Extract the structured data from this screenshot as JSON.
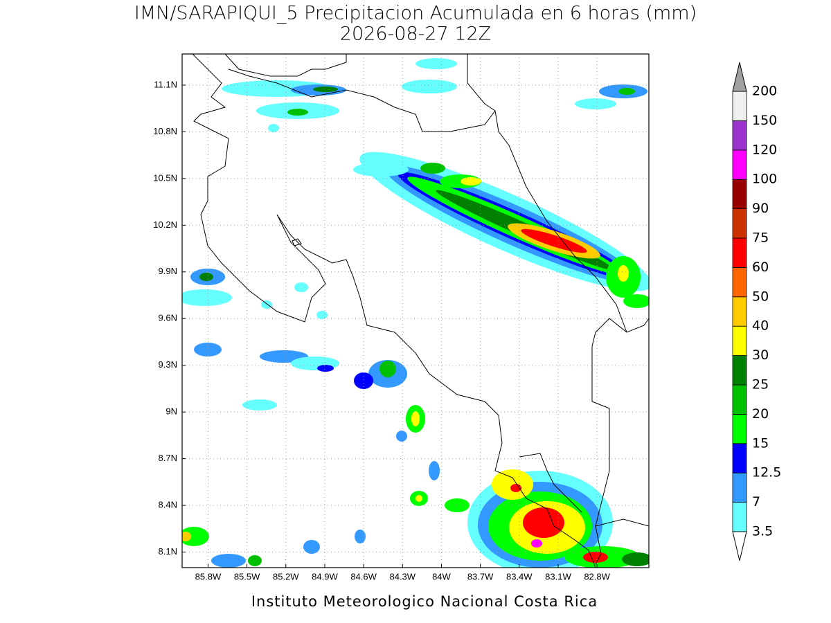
{
  "map": {
    "title": "IMN/SARAPIQUI_5 Precipitacion Acumulada en 6 horas (mm)",
    "subtitle": "2026-08-27 12Z",
    "credit": "Instituto Meteorologico Nacional Costa Rica",
    "xlim": [
      -86.0,
      -82.4
    ],
    "ylim": [
      8.0,
      11.3
    ],
    "xticks": [
      {
        "value": -85.8,
        "label": "85.8W"
      },
      {
        "value": -85.5,
        "label": "85.5W"
      },
      {
        "value": -85.2,
        "label": "85.2W"
      },
      {
        "value": -84.9,
        "label": "84.9W"
      },
      {
        "value": -84.6,
        "label": "84.6W"
      },
      {
        "value": -84.3,
        "label": "84.3W"
      },
      {
        "value": -84.0,
        "label": "84W"
      },
      {
        "value": -83.7,
        "label": "83.7W"
      },
      {
        "value": -83.4,
        "label": "83.4W"
      },
      {
        "value": -83.1,
        "label": "83.1W"
      },
      {
        "value": -82.8,
        "label": "82.8W"
      }
    ],
    "yticks": [
      {
        "value": 8.1,
        "label": "8.1N"
      },
      {
        "value": 8.4,
        "label": "8.4N"
      },
      {
        "value": 8.7,
        "label": "8.7N"
      },
      {
        "value": 9.0,
        "label": "9N"
      },
      {
        "value": 9.3,
        "label": "9.3N"
      },
      {
        "value": 9.6,
        "label": "9.6N"
      },
      {
        "value": 9.9,
        "label": "9.9N"
      },
      {
        "value": 10.2,
        "label": "10.2N"
      },
      {
        "value": 10.5,
        "label": "10.5N"
      },
      {
        "value": 10.8,
        "label": "10.8N"
      },
      {
        "value": 11.1,
        "label": "11.1N"
      }
    ],
    "grid": true,
    "colorbar": {
      "levels": [
        3.5,
        7,
        12.5,
        15,
        20,
        25,
        30,
        40,
        50,
        60,
        75,
        90,
        100,
        120,
        150,
        200
      ],
      "colors": [
        "#66ffff",
        "#3399ff",
        "#0000ff",
        "#00ff00",
        "#00c000",
        "#008000",
        "#ffff00",
        "#ffcc00",
        "#ff6600",
        "#ff0000",
        "#cc3300",
        "#990000",
        "#ff00ff",
        "#9933cc",
        "#f0f0f0"
      ],
      "under_color": "#ffffff",
      "over_color": "#a0a0a0"
    }
  }
}
